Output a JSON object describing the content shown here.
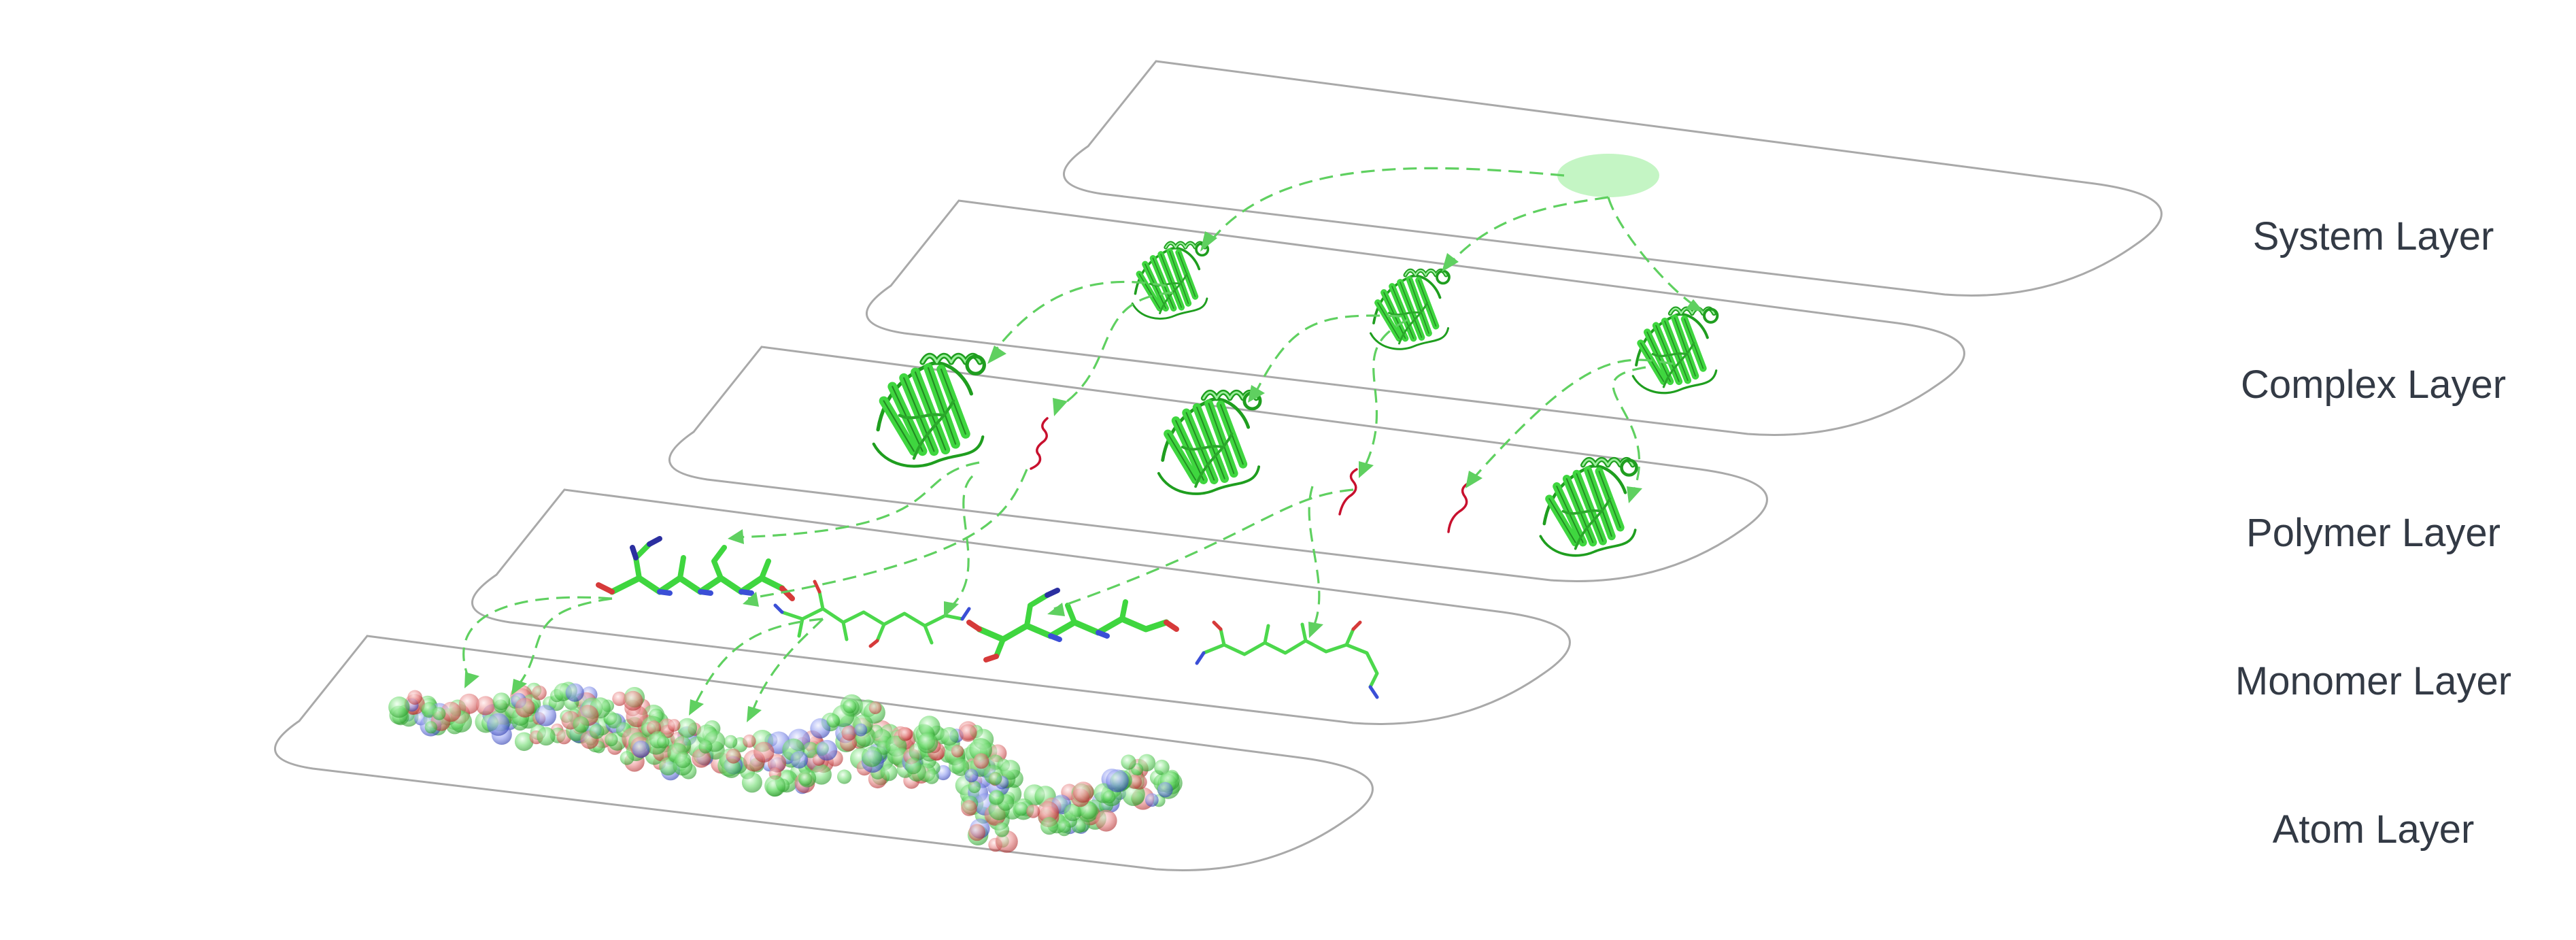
{
  "layers": [
    {
      "id": "system",
      "label": "System Layer"
    },
    {
      "id": "complex",
      "label": "Complex Layer"
    },
    {
      "id": "polymer",
      "label": "Polymer Layer"
    },
    {
      "id": "monomer",
      "label": "Monomer Layer"
    },
    {
      "id": "atom",
      "label": "Atom Layer"
    }
  ],
  "colors": {
    "panel_border": "#a9a9a9",
    "label_text": "#333a45",
    "flow_arrows": "#5fd060",
    "protein_green": "#3fd63f",
    "peptide_red": "#c8102e",
    "atom_nitrogen": "#3b4fd6",
    "atom_oxygen": "#d63a3a",
    "system_node": "#c4f5c4"
  },
  "icons": {
    "system_node": "system-node-icon",
    "protein_complex": "protein-ribbon-icon",
    "peptide_chain": "peptide-chain-icon",
    "stick_model": "stick-model-icon",
    "space_filling": "space-filling-model-icon"
  }
}
